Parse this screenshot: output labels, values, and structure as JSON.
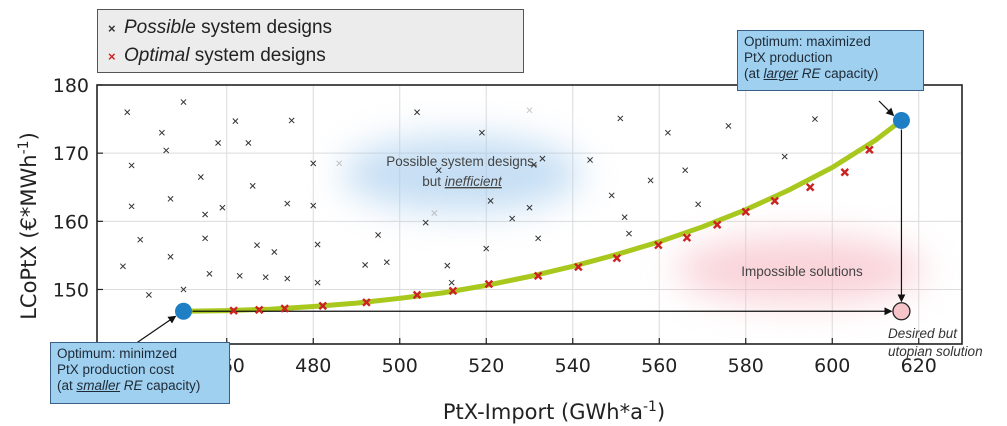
{
  "legend": {
    "possible": {
      "em": "Possible",
      "rest": " system designs",
      "marker_color": "#333333"
    },
    "optimal": {
      "em": "Optimal",
      "rest": " system designs",
      "marker_color": "#cc2222"
    }
  },
  "callouts": {
    "max": {
      "l1": "Optimum: maximized",
      "l2": "PtX production",
      "l3a": "(at ",
      "l3u": "larger",
      "l3b": " ",
      "l3i": "RE",
      "l3c": " capacity)"
    },
    "min": {
      "l1": "Optimum: minimzed",
      "l2": "PtX production cost",
      "l3a": "(at ",
      "l3u": "smaller",
      "l3b": " ",
      "l3i": "RE",
      "l3c": " capacity)"
    }
  },
  "annotations": {
    "inefficient_l1": "Possible system designs,",
    "inefficient_l2a": "but ",
    "inefficient_l2b": "inefficient",
    "impossible": "Impossible solutions",
    "utopian_l1": "Desired but",
    "utopian_l2": "utopian solution"
  },
  "colors": {
    "pareto_line": "#a8c81e",
    "optimum_point": "#1f7fc4",
    "utopian_point": "#f6c3c9",
    "optimal_marker": "#cc2222",
    "blue_glow": "#9fc8ec",
    "pink_glow": "#f5b5bf"
  },
  "chart_data": {
    "type": "scatter",
    "xlabel": "PtX-Import (GWh*a",
    "xlabel_sup": "-1",
    "xlabel_end": ")",
    "ylabel": "LCoPtX (€*MWh",
    "ylabel_sup": "-1",
    "ylabel_end": ")",
    "xlim": [
      430,
      630
    ],
    "ylim": [
      142,
      180
    ],
    "xticks": [
      "460",
      "480",
      "500",
      "520",
      "540",
      "560",
      "580",
      "600",
      "620"
    ],
    "yticks": [
      "150",
      "160",
      "170",
      "180"
    ],
    "grid": true,
    "series": [
      {
        "name": "Possible system designs",
        "points": [
          [
            436,
            153.4
          ],
          [
            437,
            176
          ],
          [
            438,
            168.2
          ],
          [
            438,
            162.2
          ],
          [
            440,
            157.3
          ],
          [
            442,
            149.2
          ],
          [
            445,
            173
          ],
          [
            446,
            170.4
          ],
          [
            447,
            163.3
          ],
          [
            447,
            154.8
          ],
          [
            450,
            177.5
          ],
          [
            450,
            150
          ],
          [
            454,
            166.5
          ],
          [
            455,
            161
          ],
          [
            455,
            157.5
          ],
          [
            456,
            152.3
          ],
          [
            458,
            171.5
          ],
          [
            459,
            162
          ],
          [
            462,
            174.7
          ],
          [
            463,
            152
          ],
          [
            465,
            171.5
          ],
          [
            466,
            165.2
          ],
          [
            467,
            156.5
          ],
          [
            469,
            151.8
          ],
          [
            471,
            155.5
          ],
          [
            474,
            151.6
          ],
          [
            474,
            162.6
          ],
          [
            475,
            174.8
          ],
          [
            480,
            162.3
          ],
          [
            480,
            168.5
          ],
          [
            481,
            151
          ],
          [
            481,
            156.6
          ],
          [
            492,
            153.6
          ],
          [
            495,
            158
          ],
          [
            497,
            154
          ],
          [
            504,
            176
          ],
          [
            506,
            159.8
          ],
          [
            509,
            167.5
          ],
          [
            511,
            153.5
          ],
          [
            512,
            151
          ],
          [
            519,
            173
          ],
          [
            520,
            156
          ],
          [
            521,
            163
          ],
          [
            526,
            160.4
          ],
          [
            530,
            162
          ],
          [
            531,
            168.3
          ],
          [
            532,
            157.5
          ],
          [
            533,
            169.2
          ],
          [
            544,
            169
          ],
          [
            549,
            163.8
          ],
          [
            551,
            175.1
          ],
          [
            552,
            160.6
          ],
          [
            553,
            158.2
          ],
          [
            558,
            166
          ],
          [
            562,
            173
          ],
          [
            566,
            167.5
          ],
          [
            569,
            162.5
          ],
          [
            576,
            174
          ],
          [
            589,
            169.5
          ],
          [
            596,
            175
          ]
        ]
      },
      {
        "name": "Optimal system designs",
        "points": [
          [
            461.6,
            146.9
          ],
          [
            467.5,
            147.0
          ],
          [
            473.4,
            147.2
          ],
          [
            482.2,
            147.6
          ],
          [
            492.3,
            148.1
          ],
          [
            504.0,
            149.2
          ],
          [
            512.3,
            149.8
          ],
          [
            520.6,
            150.8
          ],
          [
            532.0,
            152.0
          ],
          [
            541.3,
            153.3
          ],
          [
            550.2,
            154.6
          ],
          [
            559.8,
            156.5
          ],
          [
            566.4,
            157.6
          ],
          [
            573.4,
            159.5
          ],
          [
            580.0,
            161.4
          ],
          [
            586.7,
            163.0
          ],
          [
            594.9,
            165.0
          ],
          [
            602.9,
            167.2
          ],
          [
            608.6,
            170.5
          ]
        ]
      }
    ],
    "pareto_front": [
      [
        450,
        146.8
      ],
      [
        460,
        146.9
      ],
      [
        470,
        147.1
      ],
      [
        480,
        147.5
      ],
      [
        490,
        148.0
      ],
      [
        500,
        148.7
      ],
      [
        510,
        149.5
      ],
      [
        520,
        150.6
      ],
      [
        530,
        151.9
      ],
      [
        540,
        153.4
      ],
      [
        550,
        155.1
      ],
      [
        560,
        157.0
      ],
      [
        570,
        159.2
      ],
      [
        580,
        161.7
      ],
      [
        590,
        164.6
      ],
      [
        600,
        167.9
      ],
      [
        610,
        171.9
      ],
      [
        616,
        174.8
      ]
    ],
    "optimum_min": [
      450,
      146.8
    ],
    "optimum_max": [
      616,
      174.8
    ],
    "utopian": [
      616,
      146.8
    ],
    "faded_points": [
      [
        530,
        176.3
      ],
      [
        486,
        168.5
      ],
      [
        508,
        161.2
      ]
    ]
  }
}
